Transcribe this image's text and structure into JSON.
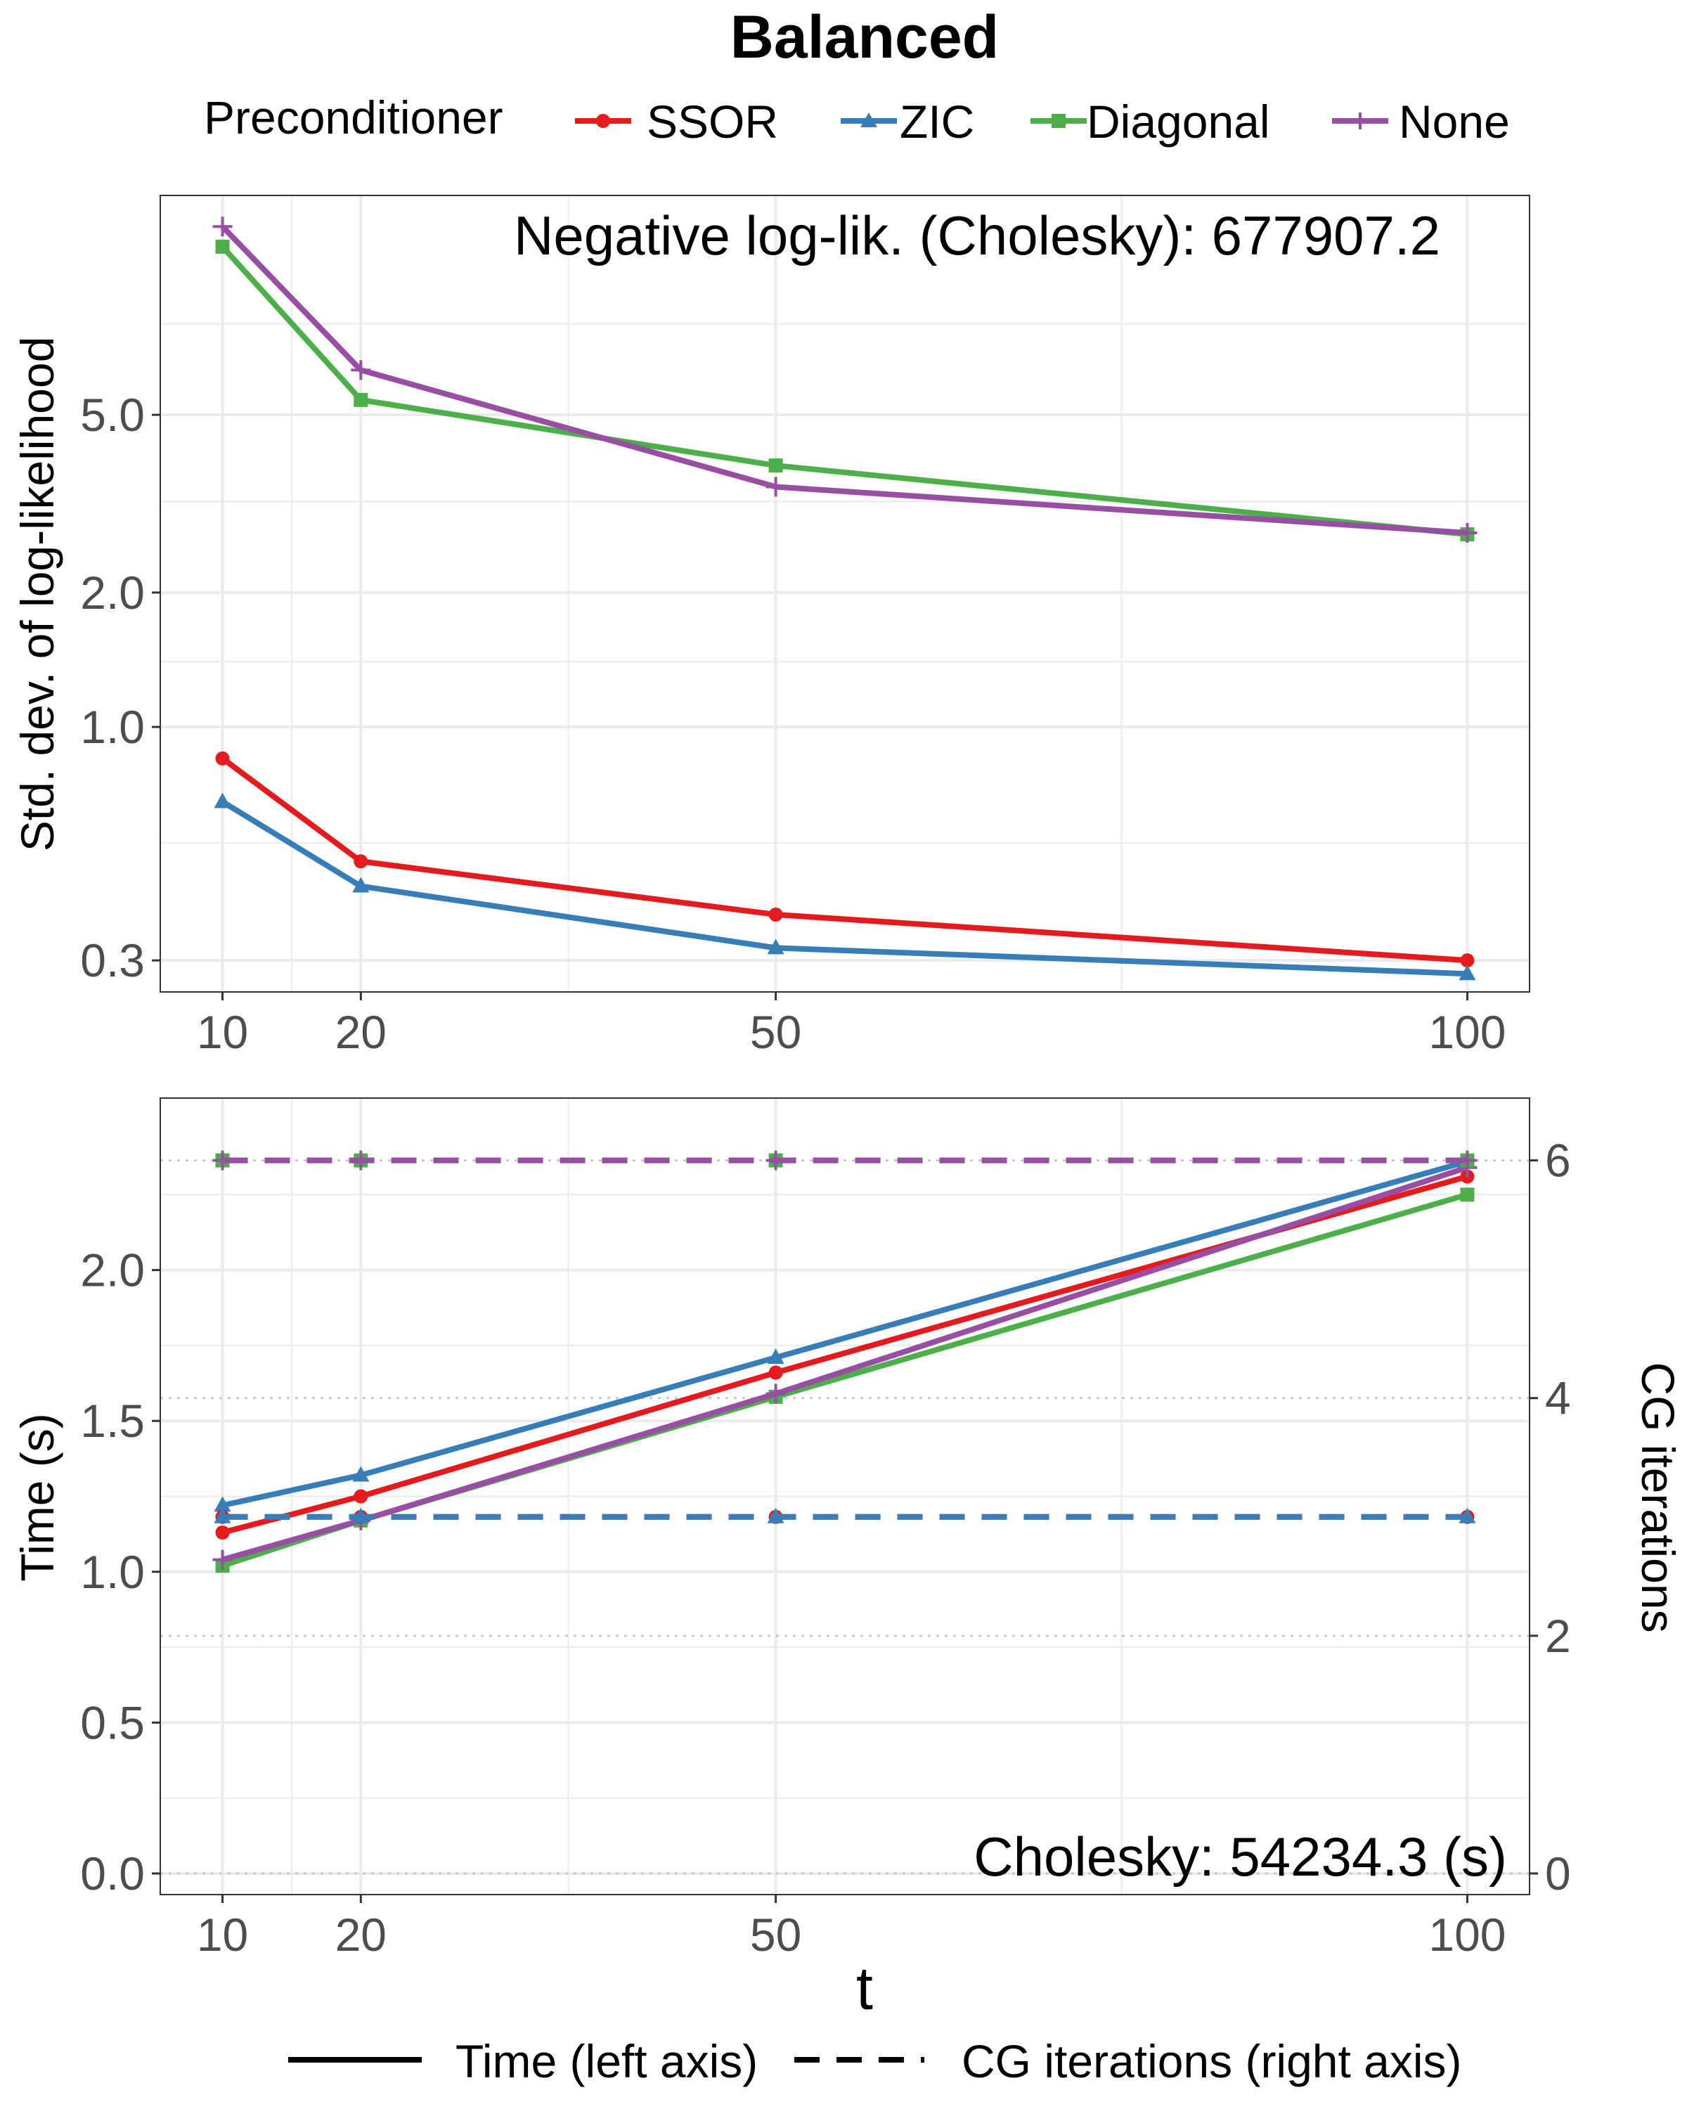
{
  "title": "Balanced",
  "legend": {
    "title": "Preconditioner",
    "items": [
      {
        "label": "SSOR",
        "color": "#E41A1C",
        "marker": "circle"
      },
      {
        "label": "ZIC",
        "color": "#377EB8",
        "marker": "triangle"
      },
      {
        "label": "Diagonal",
        "color": "#4DAF4A",
        "marker": "square"
      },
      {
        "label": "None",
        "color": "#984EA3",
        "marker": "plus"
      }
    ],
    "linetypes": [
      {
        "label": "Time (left axis)",
        "style": "solid"
      },
      {
        "label": "CG iterations (right axis)",
        "style": "dashed"
      }
    ]
  },
  "xlabel": "t",
  "chart_data": [
    {
      "type": "line",
      "panel": "top",
      "annotation": "Negative log-lik. (Cholesky): 677907.2",
      "ylabel": "Std. dev. of log-likelihood",
      "yscale": "log",
      "x": [
        10,
        20,
        50,
        100
      ],
      "xticks": [
        "10",
        "20",
        "50",
        "100"
      ],
      "yticks": [
        "0.3",
        "1.0",
        "2.0",
        "5.0"
      ],
      "ytick_values": [
        0.3,
        1.0,
        2.0,
        5.0
      ],
      "ylim": [
        0.255,
        15.5
      ],
      "xlim": [
        5.5,
        104.5
      ],
      "grid": true,
      "series": [
        {
          "name": "SSOR",
          "values": [
            0.85,
            0.5,
            0.38,
            0.3
          ]
        },
        {
          "name": "ZIC",
          "values": [
            0.68,
            0.44,
            0.32,
            0.28
          ]
        },
        {
          "name": "Diagonal",
          "values": [
            11.9,
            5.4,
            3.85,
            2.7
          ]
        },
        {
          "name": "None",
          "values": [
            13.2,
            6.3,
            3.45,
            2.72
          ]
        }
      ]
    },
    {
      "type": "line",
      "panel": "bottom",
      "annotation": "Cholesky: 54234.3 (s)",
      "ylabel": "Time (s)",
      "y2label": "CG iterations",
      "x": [
        10,
        20,
        50,
        100
      ],
      "xticks": [
        "10",
        "20",
        "50",
        "100"
      ],
      "yticks": [
        "0.0",
        "0.5",
        "1.0",
        "1.5",
        "2.0"
      ],
      "ytick_values": [
        0,
        0.5,
        1.0,
        1.5,
        2.0
      ],
      "y2ticks": [
        "0",
        "2",
        "4",
        "6"
      ],
      "y2tick_values": [
        0,
        2,
        4,
        6
      ],
      "ylim": [
        -0.07,
        2.57
      ],
      "y2lim": [
        -0.1778,
        6.5244
      ],
      "xlim": [
        5.5,
        104.5
      ],
      "grid": true,
      "time_series": [
        {
          "name": "SSOR",
          "values": [
            1.13,
            1.25,
            1.66,
            2.31
          ]
        },
        {
          "name": "ZIC",
          "values": [
            1.22,
            1.32,
            1.71,
            2.36
          ]
        },
        {
          "name": "Diagonal",
          "values": [
            1.02,
            1.17,
            1.58,
            2.25
          ]
        },
        {
          "name": "None",
          "values": [
            1.04,
            1.17,
            1.59,
            2.34
          ]
        }
      ],
      "cg_iterations_series": [
        {
          "name": "SSOR",
          "values": [
            3,
            3,
            3,
            3
          ]
        },
        {
          "name": "ZIC",
          "values": [
            3,
            3,
            3,
            3
          ]
        },
        {
          "name": "Diagonal",
          "values": [
            6,
            6,
            6,
            6
          ]
        },
        {
          "name": "None",
          "values": [
            6,
            6,
            6,
            6
          ]
        }
      ]
    }
  ]
}
